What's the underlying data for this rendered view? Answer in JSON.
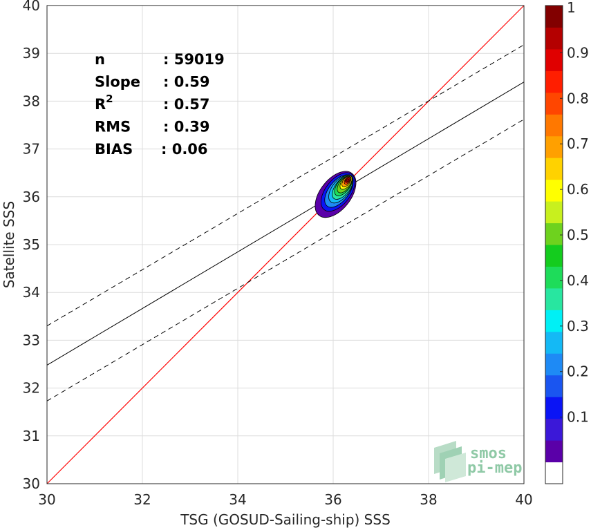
{
  "chart_data": {
    "type": "density-scatter",
    "xlabel": "TSG (GOSUD-Sailing-ship) SSS",
    "ylabel": "Satellite SSS",
    "xlim": [
      30,
      40
    ],
    "ylim": [
      30,
      40
    ],
    "xticks": [
      "30",
      "32",
      "34",
      "36",
      "38",
      "40"
    ],
    "yticks": [
      "30",
      "31",
      "32",
      "33",
      "34",
      "35",
      "36",
      "37",
      "38",
      "39",
      "40"
    ],
    "grid": true,
    "stats": [
      {
        "label": "n",
        "value": ": 59019"
      },
      {
        "label": "Slope",
        "value": ": 0.59"
      },
      {
        "label": "R",
        "sup": "2",
        "value": ": 0.57"
      },
      {
        "label": "RMS",
        "value": ": 0.39"
      },
      {
        "label": "BIAS",
        "value": ": 0.06"
      }
    ],
    "one_to_one_line": {
      "color": "#ff0000",
      "from": [
        30,
        30
      ],
      "to": [
        40,
        40
      ]
    },
    "regression_line": {
      "color": "#000000",
      "from": [
        30,
        32.48
      ],
      "to": [
        40,
        38.4
      ]
    },
    "envelope_lines": [
      {
        "style": "dashed",
        "from": [
          30,
          33.3
        ],
        "to": [
          40,
          39.18
        ]
      },
      {
        "style": "dashed",
        "from": [
          30,
          31.73
        ],
        "to": [
          40,
          37.62
        ]
      }
    ],
    "density_center": [
      36.3,
      36.35
    ],
    "colorbar": {
      "ticks": [
        "0.1",
        "0.2",
        "0.3",
        "0.4",
        "0.5",
        "0.6",
        "0.7",
        "0.8",
        "0.9",
        "1"
      ],
      "colors": [
        "#ffffff",
        "#5a00a8",
        "#3b18d8",
        "#0a14f5",
        "#1a55f0",
        "#1e8af5",
        "#14b9f5",
        "#00f0f5",
        "#28e6a0",
        "#1edc5a",
        "#14cc1e",
        "#6ed21e",
        "#c8f01e",
        "#ffff00",
        "#ffd200",
        "#ffa000",
        "#ff7800",
        "#ff4600",
        "#ff1e00",
        "#e00000",
        "#b40000",
        "#820000"
      ]
    },
    "contour_levels": [
      {
        "level": 0.05,
        "color": "#5a00a8",
        "rx": 0.56,
        "ry": 0.32,
        "cx": 36.05,
        "cy": 36.05,
        "rot": -52
      },
      {
        "level": 0.1,
        "color": "#0a14f5",
        "rx": 0.47,
        "ry": 0.26,
        "cx": 36.1,
        "cy": 36.1,
        "rot": -52
      },
      {
        "level": 0.2,
        "color": "#1e8af5",
        "rx": 0.4,
        "ry": 0.21,
        "cx": 36.12,
        "cy": 36.12,
        "rot": -52
      },
      {
        "level": 0.3,
        "color": "#14b9f5",
        "rx": 0.34,
        "ry": 0.18,
        "cx": 36.16,
        "cy": 36.16,
        "rot": -52
      },
      {
        "level": 0.4,
        "color": "#28e6a0",
        "rx": 0.3,
        "ry": 0.15,
        "cx": 36.2,
        "cy": 36.2,
        "rot": -52
      },
      {
        "level": 0.5,
        "color": "#1edc5a",
        "rx": 0.26,
        "ry": 0.13,
        "cx": 36.22,
        "cy": 36.24,
        "rot": -52
      },
      {
        "level": 0.6,
        "color": "#6ed21e",
        "rx": 0.21,
        "ry": 0.11,
        "cx": 36.24,
        "cy": 36.26,
        "rot": -52
      },
      {
        "level": 0.7,
        "color": "#ffff00",
        "rx": 0.17,
        "ry": 0.09,
        "cx": 36.27,
        "cy": 36.3,
        "rot": -52
      },
      {
        "level": 0.8,
        "color": "#ffa000",
        "rx": 0.13,
        "ry": 0.07,
        "cx": 36.28,
        "cy": 36.32,
        "rot": -52
      },
      {
        "level": 0.85,
        "color": "#ff4600",
        "rx": 0.09,
        "ry": 0.05,
        "cx": 36.3,
        "cy": 36.34,
        "rot": -52
      },
      {
        "level": 0.9,
        "color": "#e00000",
        "rx": 0.06,
        "ry": 0.04,
        "cx": 36.3,
        "cy": 36.35,
        "rot": -52
      },
      {
        "level": 1.0,
        "color": "#b40000",
        "rx": 0.03,
        "ry": 0.02,
        "cx": 36.3,
        "cy": 36.35,
        "rot": -52
      }
    ],
    "logo": {
      "line1": "smos",
      "line2": "pi-mep"
    }
  }
}
